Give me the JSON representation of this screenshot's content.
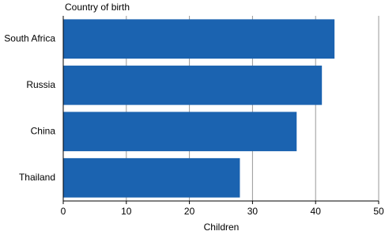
{
  "chart_data": {
    "type": "bar",
    "orientation": "horizontal",
    "title": "Country of birth",
    "x_label": "Children",
    "categories": [
      "South Africa",
      "Russia",
      "China",
      "Thailand"
    ],
    "values": [
      43,
      41,
      37,
      28
    ],
    "color": "#1b63b0",
    "xlim": [
      0,
      50
    ],
    "xticks": [
      0,
      10,
      20,
      30,
      40,
      50
    ],
    "grid": true
  }
}
